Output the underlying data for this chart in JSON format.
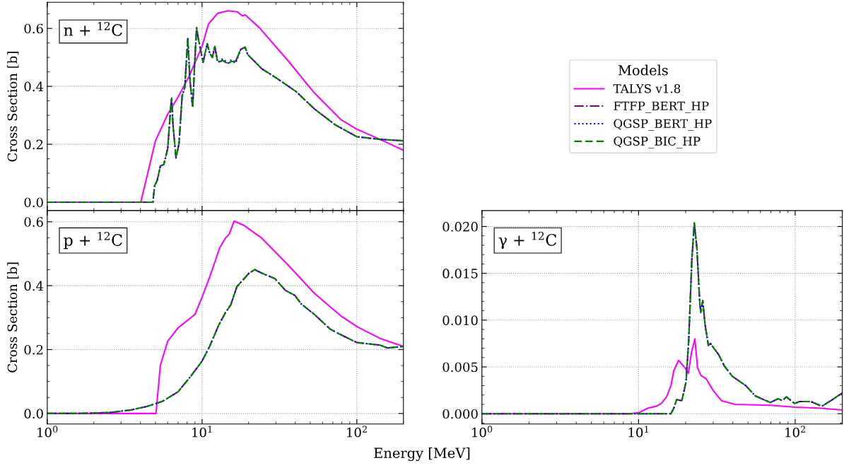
{
  "chart_data": [
    {
      "type": "line",
      "annotations": [
        "n + $^{12}$C"
      ],
      "ylabel": "Cross Section [b]",
      "legend_title": "Models",
      "legend": "right",
      "grid": true,
      "log": "x",
      "tick_labels": "y",
      "xlim": [
        1,
        200
      ],
      "xticks": [
        {
          "value": 1,
          "label": null
        },
        {
          "value": 10,
          "label": null
        },
        {
          "value": 100,
          "label": null
        }
      ],
      "ylim": [
        -0.029,
        0.69
      ],
      "yticks": [
        {
          "value": 0,
          "label": "0.0"
        },
        0.2,
        0.4,
        0.6
      ],
      "series": [
        {
          "name": "TALYS v1.8",
          "color": "#ff00ff",
          "line_style": "solid",
          "x": [
            1,
            4.02,
            5.0,
            6.0,
            7.0,
            8.2,
            10.0,
            11.0,
            12.6,
            14.7,
            16.9,
            18.2,
            19.0,
            23.5,
            36.1,
            53.2,
            78.5,
            100,
            141,
            199
          ],
          "values": [
            0,
            0,
            0.212,
            0.304,
            0.363,
            0.432,
            0.538,
            0.615,
            0.652,
            0.661,
            0.657,
            0.643,
            0.647,
            0.602,
            0.487,
            0.377,
            0.286,
            0.252,
            0.217,
            0.18
          ]
        },
        {
          "name": "FTFP_BERT_HP",
          "color": "#800080",
          "line_style": "dashdot",
          "x": [
            1,
            4.81,
            4.94,
            5.13,
            5.38,
            5.66,
            6.0,
            6.28,
            6.36,
            6.49,
            6.79,
            7.1,
            7.44,
            7.74,
            7.88,
            8.09,
            8.35,
            8.7,
            8.94,
            9.22,
            9.5,
            10.16,
            10.8,
            11.2,
            11.65,
            12.1,
            12.6,
            13.6,
            14.7,
            15.3,
            16.5,
            17.8,
            19.0,
            19.7,
            24.4,
            29.6,
            40.5,
            53.2,
            72.6,
            100,
            141,
            199
          ],
          "values": [
            0,
            0,
            0.057,
            0.075,
            0.125,
            0.13,
            0.185,
            0.33,
            0.36,
            0.267,
            0.153,
            0.203,
            0.368,
            0.396,
            0.469,
            0.565,
            0.423,
            0.327,
            0.469,
            0.602,
            0.56,
            0.483,
            0.547,
            0.515,
            0.5,
            0.538,
            0.483,
            0.489,
            0.478,
            0.485,
            0.487,
            0.528,
            0.535,
            0.51,
            0.46,
            0.432,
            0.382,
            0.322,
            0.267,
            0.226,
            0.217,
            0.212
          ]
        },
        {
          "name": "QGSP_BERT_HP",
          "color": "#0000ff",
          "line_style": "dotted",
          "x": [
            1,
            4.81,
            4.94,
            5.13,
            5.38,
            5.66,
            6.0,
            6.28,
            6.36,
            6.49,
            6.79,
            7.1,
            7.44,
            7.74,
            7.88,
            8.09,
            8.35,
            8.7,
            8.94,
            9.22,
            9.5,
            10.16,
            10.8,
            11.2,
            11.65,
            12.1,
            12.6,
            13.6,
            14.7,
            15.3,
            16.5,
            17.8,
            19.0,
            19.7,
            24.4,
            29.6,
            40.5,
            53.2,
            72.6,
            100,
            141,
            199
          ],
          "values": [
            0,
            0,
            0.057,
            0.075,
            0.125,
            0.13,
            0.185,
            0.33,
            0.36,
            0.267,
            0.153,
            0.203,
            0.368,
            0.396,
            0.469,
            0.565,
            0.423,
            0.327,
            0.469,
            0.602,
            0.56,
            0.483,
            0.547,
            0.515,
            0.5,
            0.538,
            0.483,
            0.495,
            0.48,
            0.49,
            0.48,
            0.528,
            0.535,
            0.51,
            0.46,
            0.432,
            0.382,
            0.322,
            0.267,
            0.226,
            0.217,
            0.212
          ]
        },
        {
          "name": "QGSP_BIC_HP",
          "color": "#008000",
          "line_style": "dashed",
          "x": [
            1,
            4.81,
            4.94,
            5.13,
            5.38,
            5.66,
            6.0,
            6.28,
            6.36,
            6.49,
            6.79,
            7.1,
            7.44,
            7.74,
            7.88,
            8.09,
            8.35,
            8.7,
            8.94,
            9.22,
            9.5,
            10.16,
            10.8,
            11.2,
            11.65,
            12.1,
            12.6,
            13.6,
            14.7,
            15.3,
            16.5,
            17.8,
            19.0,
            19.7,
            24.4,
            29.6,
            40.5,
            53.2,
            72.6,
            100,
            141,
            199
          ],
          "values": [
            0,
            0,
            0.057,
            0.075,
            0.125,
            0.13,
            0.185,
            0.33,
            0.36,
            0.267,
            0.153,
            0.203,
            0.368,
            0.396,
            0.469,
            0.565,
            0.423,
            0.327,
            0.469,
            0.602,
            0.56,
            0.483,
            0.547,
            0.515,
            0.5,
            0.538,
            0.483,
            0.489,
            0.478,
            0.485,
            0.487,
            0.528,
            0.535,
            0.51,
            0.46,
            0.432,
            0.382,
            0.322,
            0.267,
            0.226,
            0.217,
            0.212
          ]
        }
      ]
    },
    {
      "type": "line",
      "annotations": [
        "p + $^{12}$C"
      ],
      "ylabel": "Cross Section [b]",
      "xlabel": "Energy [MeV]",
      "grid": true,
      "log": "x",
      "xlim": [
        1,
        200
      ],
      "xticks": [
        {
          "value": 1,
          "label": "10$^{0}$"
        },
        {
          "value": 10,
          "label": "10$^{1}$"
        },
        {
          "value": 100,
          "label": "10$^{2}$"
        }
      ],
      "ylim": [
        -0.033,
        0.635
      ],
      "yticks": [
        {
          "value": 0,
          "label": "0.0"
        },
        0.2,
        0.4,
        0.6
      ],
      "series": [
        {
          "color": "#ff00ff",
          "line_style": "solid",
          "x": [
            1,
            5.04,
            5.38,
            6.0,
            7.0,
            9.0,
            10,
            11.2,
            13.0,
            14.1,
            15.0,
            16.1,
            18.6,
            24.4,
            36.1,
            53.2,
            78.5,
            100,
            141,
            199
          ],
          "values": [
            0,
            0,
            0.151,
            0.226,
            0.268,
            0.31,
            0.364,
            0.427,
            0.518,
            0.548,
            0.562,
            0.602,
            0.589,
            0.548,
            0.464,
            0.376,
            0.306,
            0.272,
            0.235,
            0.21
          ]
        },
        {
          "color": "#800080",
          "line_style": "dashdot",
          "x": [
            1,
            1.6,
            2.55,
            3.48,
            4.4,
            5.55,
            7.0,
            8.5,
            10,
            11.2,
            12.8,
            14.1,
            15.3,
            16.8,
            20.1,
            21.9,
            24.4,
            29.6,
            34.6,
            39.7,
            43.7,
            53.2,
            67.3,
            78.5,
            100,
            141,
            158,
            199
          ],
          "values": [
            0,
            0,
            0.003,
            0.011,
            0.022,
            0.038,
            0.068,
            0.118,
            0.164,
            0.21,
            0.276,
            0.314,
            0.339,
            0.397,
            0.439,
            0.45,
            0.439,
            0.422,
            0.385,
            0.37,
            0.343,
            0.31,
            0.264,
            0.247,
            0.222,
            0.214,
            0.205,
            0.21
          ]
        },
        {
          "color": "#0000ff",
          "line_style": "dotted",
          "x": [
            1,
            1.6,
            2.55,
            3.48,
            4.4,
            5.55,
            7.0,
            8.5,
            10,
            11.2,
            12.8,
            14.1,
            15.3,
            16.8,
            20.1,
            21.9,
            24.4,
            29.6,
            34.6,
            39.7,
            43.7,
            53.2,
            67.3,
            78.5,
            100,
            141,
            158,
            199
          ],
          "values": [
            0,
            0,
            0.003,
            0.011,
            0.022,
            0.038,
            0.068,
            0.118,
            0.164,
            0.21,
            0.276,
            0.314,
            0.339,
            0.397,
            0.439,
            0.45,
            0.439,
            0.422,
            0.385,
            0.37,
            0.343,
            0.31,
            0.264,
            0.247,
            0.222,
            0.214,
            0.205,
            0.21
          ]
        },
        {
          "color": "#008000",
          "line_style": "dashed",
          "x": [
            1,
            1.6,
            2.55,
            3.48,
            4.4,
            5.55,
            7.0,
            8.5,
            10,
            11.2,
            12.8,
            14.1,
            15.3,
            16.8,
            20.1,
            21.9,
            24.4,
            29.6,
            34.6,
            39.7,
            43.7,
            53.2,
            67.3,
            78.5,
            100,
            141,
            158,
            199
          ],
          "values": [
            0,
            0,
            0.003,
            0.011,
            0.022,
            0.038,
            0.068,
            0.118,
            0.164,
            0.21,
            0.276,
            0.314,
            0.339,
            0.397,
            0.439,
            0.45,
            0.439,
            0.422,
            0.385,
            0.37,
            0.343,
            0.31,
            0.264,
            0.247,
            0.222,
            0.214,
            0.205,
            0.21
          ]
        }
      ]
    },
    {
      "type": "line",
      "annotations": [
        "γ + $^{12}$C"
      ],
      "grid": true,
      "log": "x",
      "xlim": [
        1,
        200
      ],
      "xticks": [
        {
          "value": 1,
          "label": "10$^{0}$"
        },
        {
          "value": 10,
          "label": "10$^{1}$"
        },
        {
          "value": 100,
          "label": "10$^{2}$"
        }
      ],
      "ylim": [
        -0.0011,
        0.0217
      ],
      "yticks": [
        {
          "value": 0,
          "label": "0.000"
        },
        {
          "value": 0.005,
          "label": "0.005"
        },
        {
          "value": 0.01,
          "label": "0.010"
        },
        {
          "value": 0.015,
          "label": "0.015"
        },
        {
          "value": 0.02,
          "label": "0.020"
        }
      ],
      "series": [
        {
          "color": "#ff00ff",
          "line_style": "solid",
          "x": [
            1,
            8.72,
            10.0,
            11.5,
            13.0,
            14.0,
            15.1,
            16.1,
            16.8,
            18.0,
            19.8,
            20.8,
            21.8,
            22.9,
            23.8,
            25.0,
            27.1,
            29.9,
            33.8,
            41.2,
            69.3,
            100,
            142,
            199
          ],
          "values": [
            0,
            0,
            0.0001,
            0.0006,
            0.0008,
            0.0011,
            0.0018,
            0.003,
            0.0046,
            0.0057,
            0.0049,
            0.0043,
            0.0066,
            0.008,
            0.0049,
            0.0041,
            0.0037,
            0.0025,
            0.0014,
            0.001,
            0.0009,
            0.0007,
            0.0006,
            0.0004
          ]
        },
        {
          "color": "#800080",
          "line_style": "dashdot",
          "x": [
            1,
            16.1,
            16.8,
            17.5,
            18.9,
            20.1,
            20.9,
            21.9,
            22.7,
            23.6,
            24.6,
            25.0,
            25.7,
            26.6,
            27.9,
            28.8,
            32.5,
            35.3,
            39.7,
            48.4,
            55.6,
            69.3,
            77.9,
            82.8,
            87.9,
            99.0,
            107,
            126,
            148,
            173,
            199
          ],
          "values": [
            0,
            0,
            0.0006,
            0.0015,
            0.0014,
            0.0034,
            0.0078,
            0.0165,
            0.0204,
            0.0176,
            0.0118,
            0.0108,
            0.0121,
            0.0095,
            0.0073,
            0.0075,
            0.0063,
            0.0051,
            0.004,
            0.003,
            0.0019,
            0.0012,
            0.0016,
            0.0014,
            0.0018,
            0.0011,
            0.0013,
            0.0013,
            0.0008,
            0.0015,
            0.0022
          ]
        },
        {
          "color": "#0000ff",
          "line_style": "dotted",
          "x": [
            1,
            16.1,
            16.8,
            17.5,
            18.9,
            20.1,
            20.9,
            21.9,
            22.7,
            23.6,
            24.6,
            25.0,
            25.7,
            26.6,
            27.9,
            28.8,
            32.5,
            35.3,
            39.7,
            48.4,
            55.6,
            69.3,
            77.9,
            82.8,
            87.9,
            99.0,
            107,
            126,
            148,
            173,
            199
          ],
          "values": [
            0,
            0,
            0.0006,
            0.0015,
            0.0014,
            0.0034,
            0.0078,
            0.0165,
            0.0204,
            0.0176,
            0.0118,
            0.0108,
            0.0121,
            0.0095,
            0.0073,
            0.0075,
            0.0063,
            0.0051,
            0.004,
            0.003,
            0.0019,
            0.0012,
            0.0016,
            0.0014,
            0.0018,
            0.0011,
            0.0013,
            0.0013,
            0.0008,
            0.0015,
            0.0022
          ]
        },
        {
          "color": "#008000",
          "line_style": "dashed",
          "x": [
            1,
            16.1,
            16.8,
            17.5,
            18.9,
            20.1,
            20.9,
            21.9,
            22.7,
            23.6,
            24.6,
            25.0,
            25.7,
            26.6,
            27.9,
            28.8,
            32.5,
            35.3,
            39.7,
            48.4,
            55.6,
            69.3,
            77.9,
            82.8,
            87.9,
            99.0,
            107,
            126,
            148,
            173,
            199
          ],
          "values": [
            0,
            0,
            0.0006,
            0.0015,
            0.0014,
            0.0034,
            0.0078,
            0.0165,
            0.0204,
            0.0176,
            0.0118,
            0.0108,
            0.0121,
            0.0095,
            0.0073,
            0.0075,
            0.0063,
            0.0051,
            0.004,
            0.003,
            0.0019,
            0.0012,
            0.0016,
            0.0014,
            0.0018,
            0.0011,
            0.0013,
            0.0013,
            0.0008,
            0.0015,
            0.0022
          ]
        }
      ]
    }
  ]
}
